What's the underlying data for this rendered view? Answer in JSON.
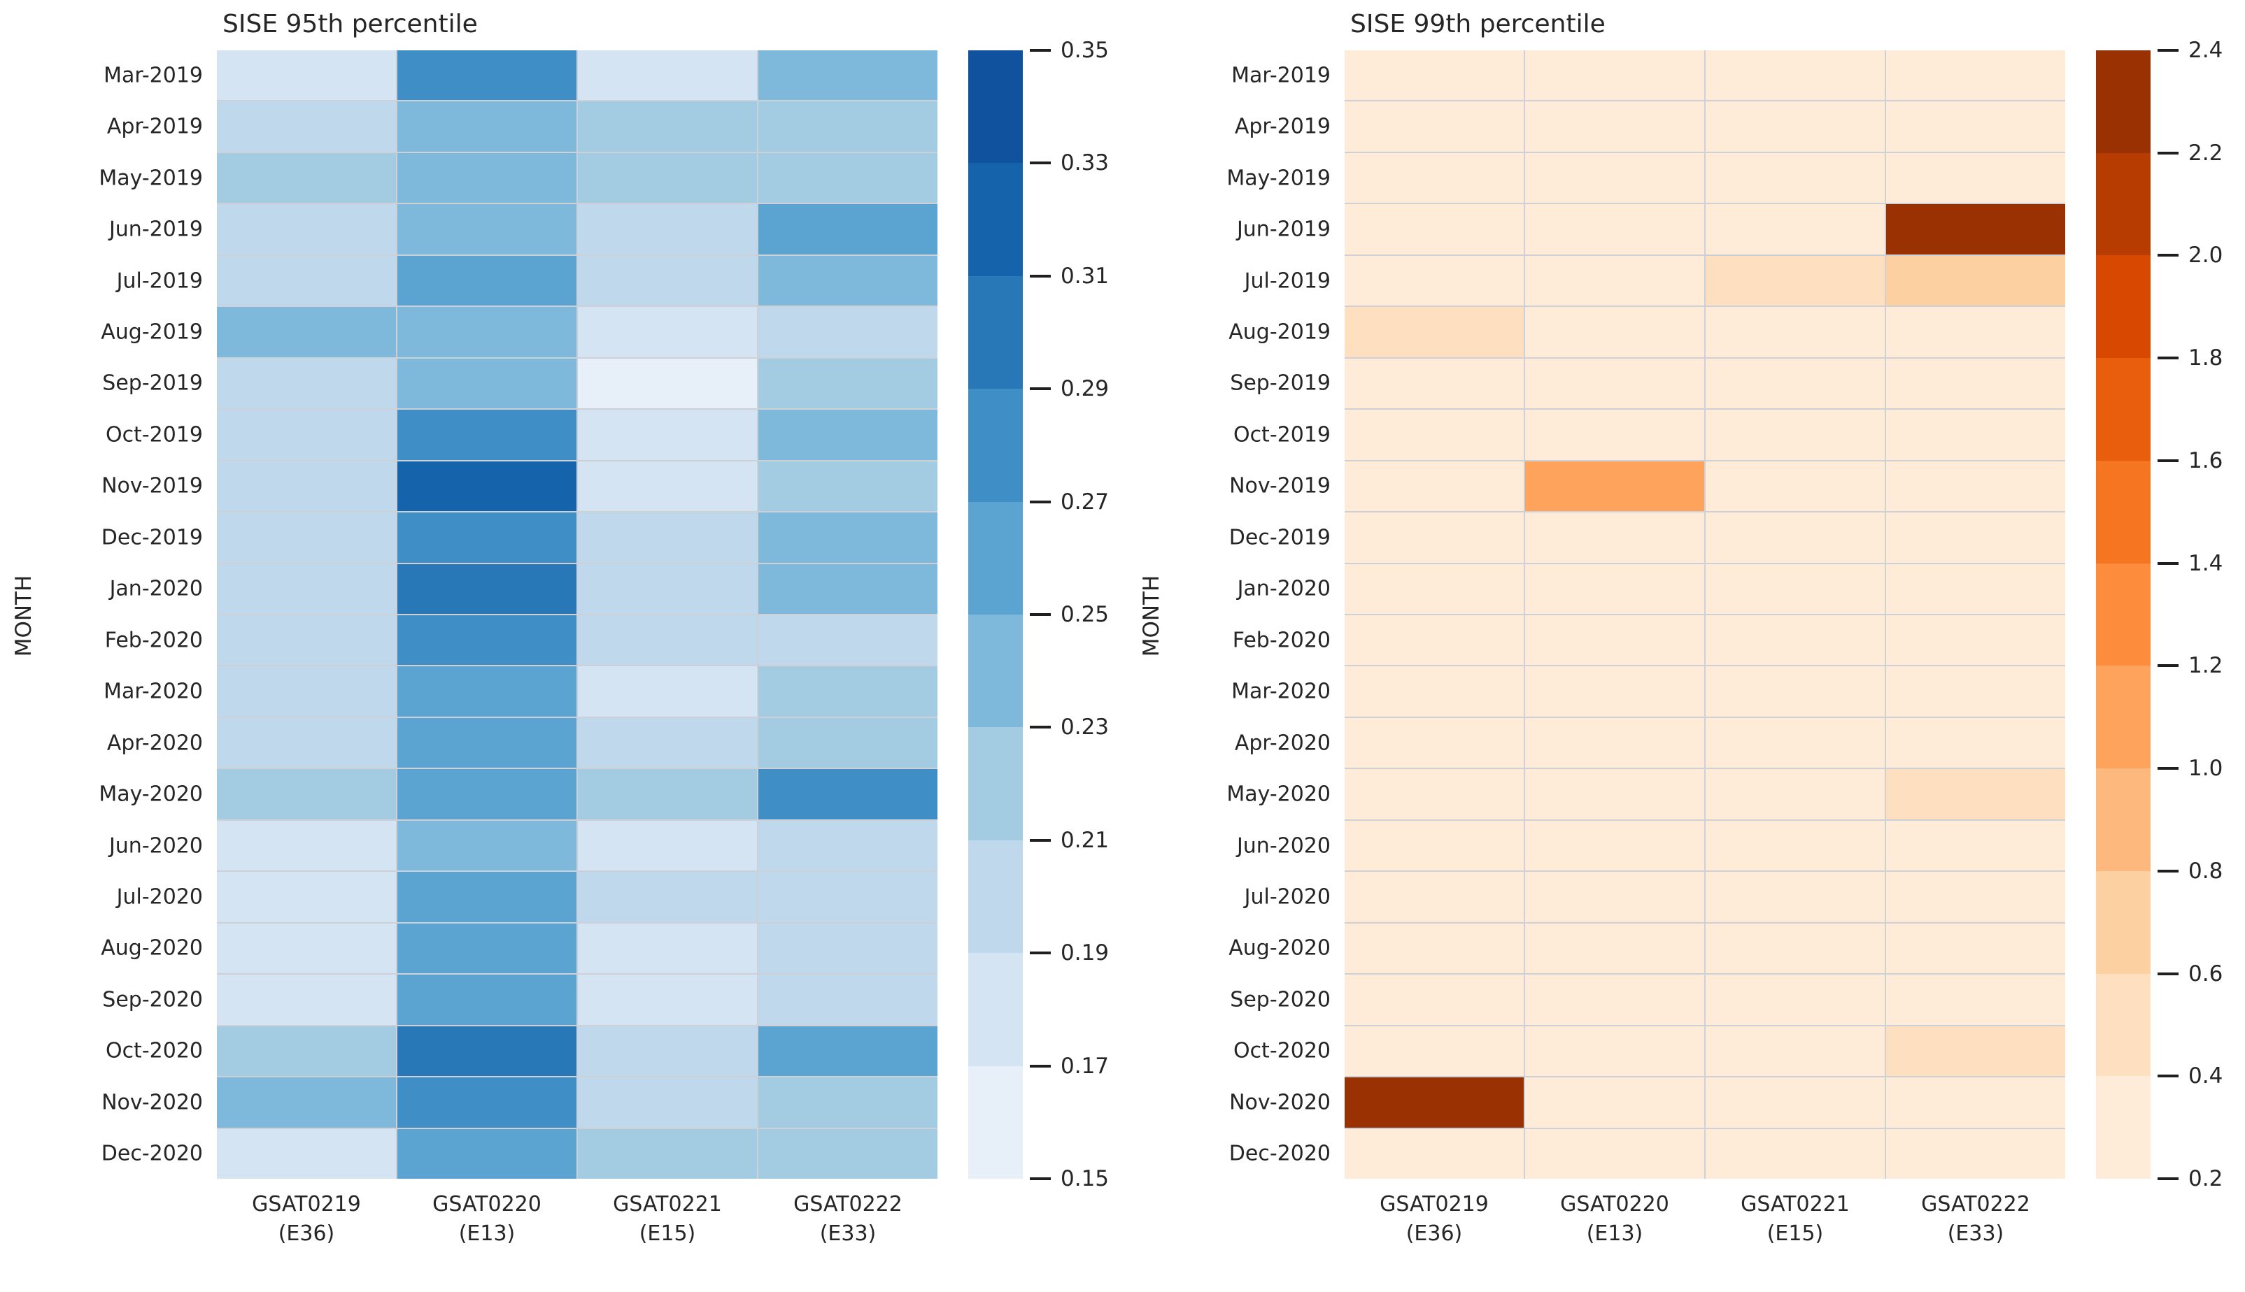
{
  "figure": {
    "background": "#ffffff",
    "text_color": "#262626",
    "cell_grid_line_color": "#cdd0d6"
  },
  "y_axis_label": "MONTH",
  "chart_data": [
    {
      "type": "heatmap",
      "title": "SISE 95th percentile",
      "ylabel": "MONTH",
      "colormap": "Blues",
      "vmin": 0.15,
      "vmax": 0.35,
      "bin_size": 0.02,
      "legend_position": "right-colorbar",
      "grid": "cell-borders",
      "x_categories": [
        {
          "name": "GSAT0219",
          "code": "(E36)"
        },
        {
          "name": "GSAT0220",
          "code": "(E13)"
        },
        {
          "name": "GSAT0221",
          "code": "(E15)"
        },
        {
          "name": "GSAT0222",
          "code": "(E33)"
        }
      ],
      "y_categories": [
        "Mar-2019",
        "Apr-2019",
        "May-2019",
        "Jun-2019",
        "Jul-2019",
        "Aug-2019",
        "Sep-2019",
        "Oct-2019",
        "Nov-2019",
        "Dec-2019",
        "Jan-2020",
        "Feb-2020",
        "Mar-2020",
        "Apr-2020",
        "May-2020",
        "Jun-2020",
        "Jul-2020",
        "Aug-2020",
        "Sep-2020",
        "Oct-2020",
        "Nov-2020",
        "Dec-2020"
      ],
      "palette": [
        "#e7f0f9",
        "#d4e4f3",
        "#c0d8ec",
        "#a3cce3",
        "#7eb8da",
        "#5ba3d0",
        "#3f8ec5",
        "#2878b8",
        "#1563ab",
        "#10529e"
      ],
      "colorbar_ticks": [
        "0.35",
        "0.33",
        "0.31",
        "0.29",
        "0.27",
        "0.25",
        "0.23",
        "0.21",
        "0.19",
        "0.17",
        "0.15"
      ],
      "values": [
        [
          0.18,
          0.28,
          0.18,
          0.24
        ],
        [
          0.2,
          0.24,
          0.22,
          0.22
        ],
        [
          0.22,
          0.24,
          0.22,
          0.22
        ],
        [
          0.2,
          0.24,
          0.2,
          0.26
        ],
        [
          0.2,
          0.26,
          0.2,
          0.24
        ],
        [
          0.24,
          0.24,
          0.18,
          0.2
        ],
        [
          0.2,
          0.24,
          0.16,
          0.22
        ],
        [
          0.2,
          0.28,
          0.18,
          0.24
        ],
        [
          0.2,
          0.32,
          0.18,
          0.22
        ],
        [
          0.2,
          0.28,
          0.2,
          0.24
        ],
        [
          0.2,
          0.3,
          0.2,
          0.24
        ],
        [
          0.2,
          0.28,
          0.2,
          0.2
        ],
        [
          0.2,
          0.26,
          0.18,
          0.22
        ],
        [
          0.2,
          0.26,
          0.2,
          0.22
        ],
        [
          0.22,
          0.26,
          0.22,
          0.28
        ],
        [
          0.18,
          0.24,
          0.18,
          0.2
        ],
        [
          0.18,
          0.26,
          0.2,
          0.2
        ],
        [
          0.18,
          0.26,
          0.18,
          0.2
        ],
        [
          0.18,
          0.26,
          0.18,
          0.2
        ],
        [
          0.22,
          0.3,
          0.2,
          0.26
        ],
        [
          0.24,
          0.28,
          0.2,
          0.22
        ],
        [
          0.18,
          0.26,
          0.22,
          0.22
        ]
      ]
    },
    {
      "type": "heatmap",
      "title": "SISE 99th percentile",
      "ylabel": "MONTH",
      "colormap": "Oranges",
      "vmin": 0.2,
      "vmax": 2.4,
      "bin_size": 0.2,
      "legend_position": "right-colorbar",
      "grid": "cell-borders",
      "x_categories": [
        {
          "name": "GSAT0219",
          "code": "(E36)"
        },
        {
          "name": "GSAT0220",
          "code": "(E13)"
        },
        {
          "name": "GSAT0221",
          "code": "(E15)"
        },
        {
          "name": "GSAT0222",
          "code": "(E33)"
        }
      ],
      "y_categories": [
        "Mar-2019",
        "Apr-2019",
        "May-2019",
        "Jun-2019",
        "Jul-2019",
        "Aug-2019",
        "Sep-2019",
        "Oct-2019",
        "Nov-2019",
        "Dec-2019",
        "Jan-2020",
        "Feb-2020",
        "Mar-2020",
        "Apr-2020",
        "May-2020",
        "Jun-2020",
        "Jul-2020",
        "Aug-2020",
        "Sep-2020",
        "Oct-2020",
        "Nov-2020",
        "Dec-2020"
      ],
      "palette": [
        "#feebd8",
        "#fedfbf",
        "#fdd0a2",
        "#fdb97d",
        "#fda35b",
        "#fd8d3c",
        "#f57521",
        "#e95e0d",
        "#d94801",
        "#b73c02",
        "#993103"
      ],
      "colorbar_ticks": [
        "2.4",
        "2.2",
        "2.0",
        "1.8",
        "1.6",
        "1.4",
        "1.2",
        "1.0",
        "0.8",
        "0.6",
        "0.4",
        "0.2"
      ],
      "values": [
        [
          0.3,
          0.3,
          0.3,
          0.3
        ],
        [
          0.3,
          0.3,
          0.3,
          0.3
        ],
        [
          0.3,
          0.3,
          0.3,
          0.3
        ],
        [
          0.3,
          0.3,
          0.3,
          2.3
        ],
        [
          0.3,
          0.3,
          0.5,
          0.7
        ],
        [
          0.5,
          0.3,
          0.3,
          0.3
        ],
        [
          0.3,
          0.3,
          0.3,
          0.3
        ],
        [
          0.3,
          0.3,
          0.3,
          0.3
        ],
        [
          0.3,
          1.1,
          0.3,
          0.3
        ],
        [
          0.3,
          0.3,
          0.3,
          0.3
        ],
        [
          0.3,
          0.3,
          0.3,
          0.3
        ],
        [
          0.3,
          0.3,
          0.3,
          0.3
        ],
        [
          0.3,
          0.3,
          0.3,
          0.3
        ],
        [
          0.3,
          0.3,
          0.3,
          0.3
        ],
        [
          0.3,
          0.3,
          0.3,
          0.5
        ],
        [
          0.3,
          0.3,
          0.3,
          0.3
        ],
        [
          0.3,
          0.3,
          0.3,
          0.3
        ],
        [
          0.3,
          0.3,
          0.3,
          0.3
        ],
        [
          0.3,
          0.3,
          0.3,
          0.3
        ],
        [
          0.3,
          0.3,
          0.3,
          0.5
        ],
        [
          2.3,
          0.3,
          0.3,
          0.3
        ],
        [
          0.3,
          0.3,
          0.3,
          0.3
        ]
      ]
    }
  ]
}
